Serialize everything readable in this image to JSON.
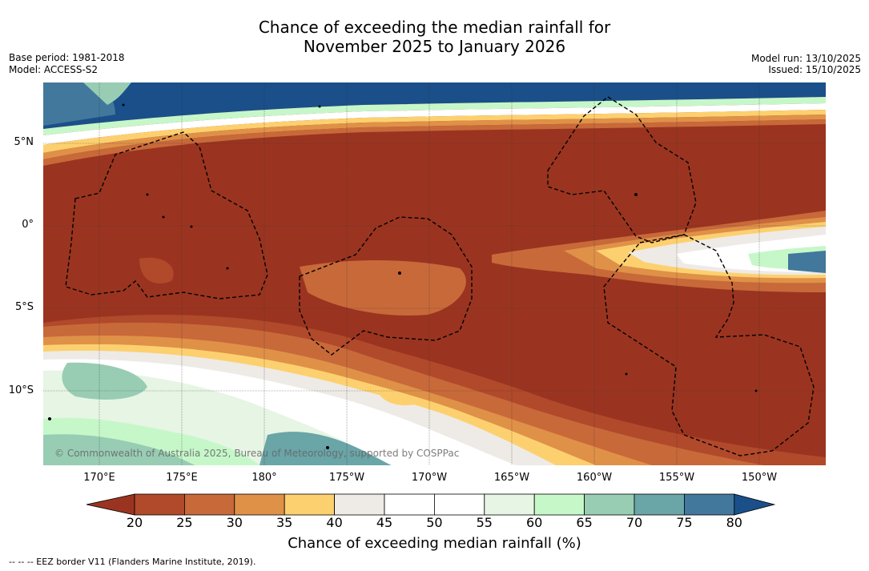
{
  "header": {
    "title_line1": "Chance of exceeding the median rainfall for",
    "title_line2": "November 2025 to January 2026",
    "base_period": "Base period: 1981-2018",
    "model": "Model: ACCESS-S2",
    "model_run": "Model run: 13/10/2025",
    "issued": "Issued: 15/10/2025"
  },
  "map": {
    "lat_labels": [
      "5°N",
      "0°",
      "5°S",
      "10°S"
    ],
    "lon_labels": [
      "170°E",
      "175°E",
      "180°",
      "175°W",
      "170°W",
      "165°W",
      "160°W",
      "155°W",
      "150°W"
    ],
    "copyright": "© Commonwealth of Australia 2025, Bureau of Meteorology, supported by COSPPac"
  },
  "colorbar": {
    "ticks": [
      "20",
      "25",
      "30",
      "35",
      "40",
      "45",
      "50",
      "55",
      "60",
      "65",
      "70",
      "75",
      "80"
    ],
    "colors": [
      "#9a3420",
      "#b1492b",
      "#c8693a",
      "#df9148",
      "#fdd06f",
      "#eeeae6",
      "#ffffff",
      "#ffffff",
      "#e7f5e4",
      "#c6f7c9",
      "#98cdb4",
      "#6aa5a8",
      "#42789c",
      "#1a4f8a"
    ],
    "title": "Chance of exceeding median rainfall (%)"
  },
  "footnote": "--  --  -- EEZ border V11 (Flanders Marine Institute, 2019)."
}
